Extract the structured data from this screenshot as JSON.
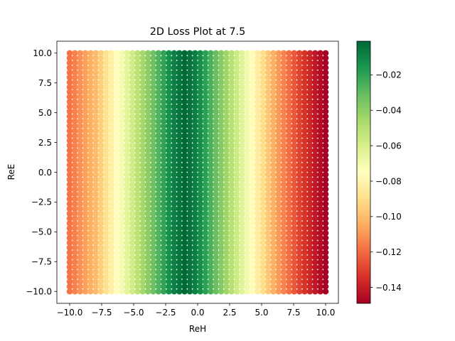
{
  "chart_data": {
    "type": "scatter",
    "title": "2D Loss Plot at 7.5",
    "xlabel": "ReH",
    "ylabel": "ReE",
    "xlim": [
      -11.0,
      11.0
    ],
    "ylim": [
      -11.0,
      11.0
    ],
    "x_ticks": [
      -10.0,
      -7.5,
      -5.0,
      -2.5,
      0.0,
      2.5,
      5.0,
      7.5,
      10.0
    ],
    "x_tick_labels": [
      "−10.0",
      "−7.5",
      "−5.0",
      "−2.5",
      "0.0",
      "2.5",
      "5.0",
      "7.5",
      "10.0"
    ],
    "y_ticks": [
      -10.0,
      -7.5,
      -5.0,
      -2.5,
      0.0,
      2.5,
      5.0,
      7.5,
      10.0
    ],
    "y_tick_labels": [
      "−10.0",
      "−7.5",
      "−5.0",
      "−2.5",
      "0.0",
      "2.5",
      "5.0",
      "7.5",
      "10.0"
    ],
    "grid": false,
    "colormap": "RdYlGn",
    "colorbar": {
      "range": [
        -0.149,
        -0.001
      ],
      "ticks": [
        -0.14,
        -0.12,
        -0.1,
        -0.08,
        -0.06,
        -0.04,
        -0.02
      ],
      "tick_labels": [
        "−0.14",
        "−0.12",
        "−0.10",
        "−0.08",
        "−0.06",
        "−0.04",
        "−0.02"
      ]
    },
    "grid_points": {
      "x_start": -10.0,
      "x_end": 10.0,
      "x_count": 50,
      "y_start": -10.0,
      "y_end": 10.0,
      "y_count": 50
    },
    "value_profile": {
      "description_of_color_by_ReH": "color depends on ReH only",
      "ReH": [
        -10.0,
        -8.0,
        -6.0,
        -4.0,
        -2.0,
        -1.0,
        0.0,
        2.0,
        4.0,
        6.0,
        8.0,
        10.0
      ],
      "loss": [
        -0.118,
        -0.101,
        -0.072,
        -0.041,
        -0.01,
        -0.001,
        -0.01,
        -0.04,
        -0.072,
        -0.105,
        -0.13,
        -0.149
      ]
    },
    "colormap_stops": [
      "#a50026",
      "#d73027",
      "#f46d43",
      "#fdae61",
      "#fee08b",
      "#ffffbf",
      "#d9ef8b",
      "#a6d96a",
      "#66bd63",
      "#1a9850",
      "#006837"
    ]
  }
}
